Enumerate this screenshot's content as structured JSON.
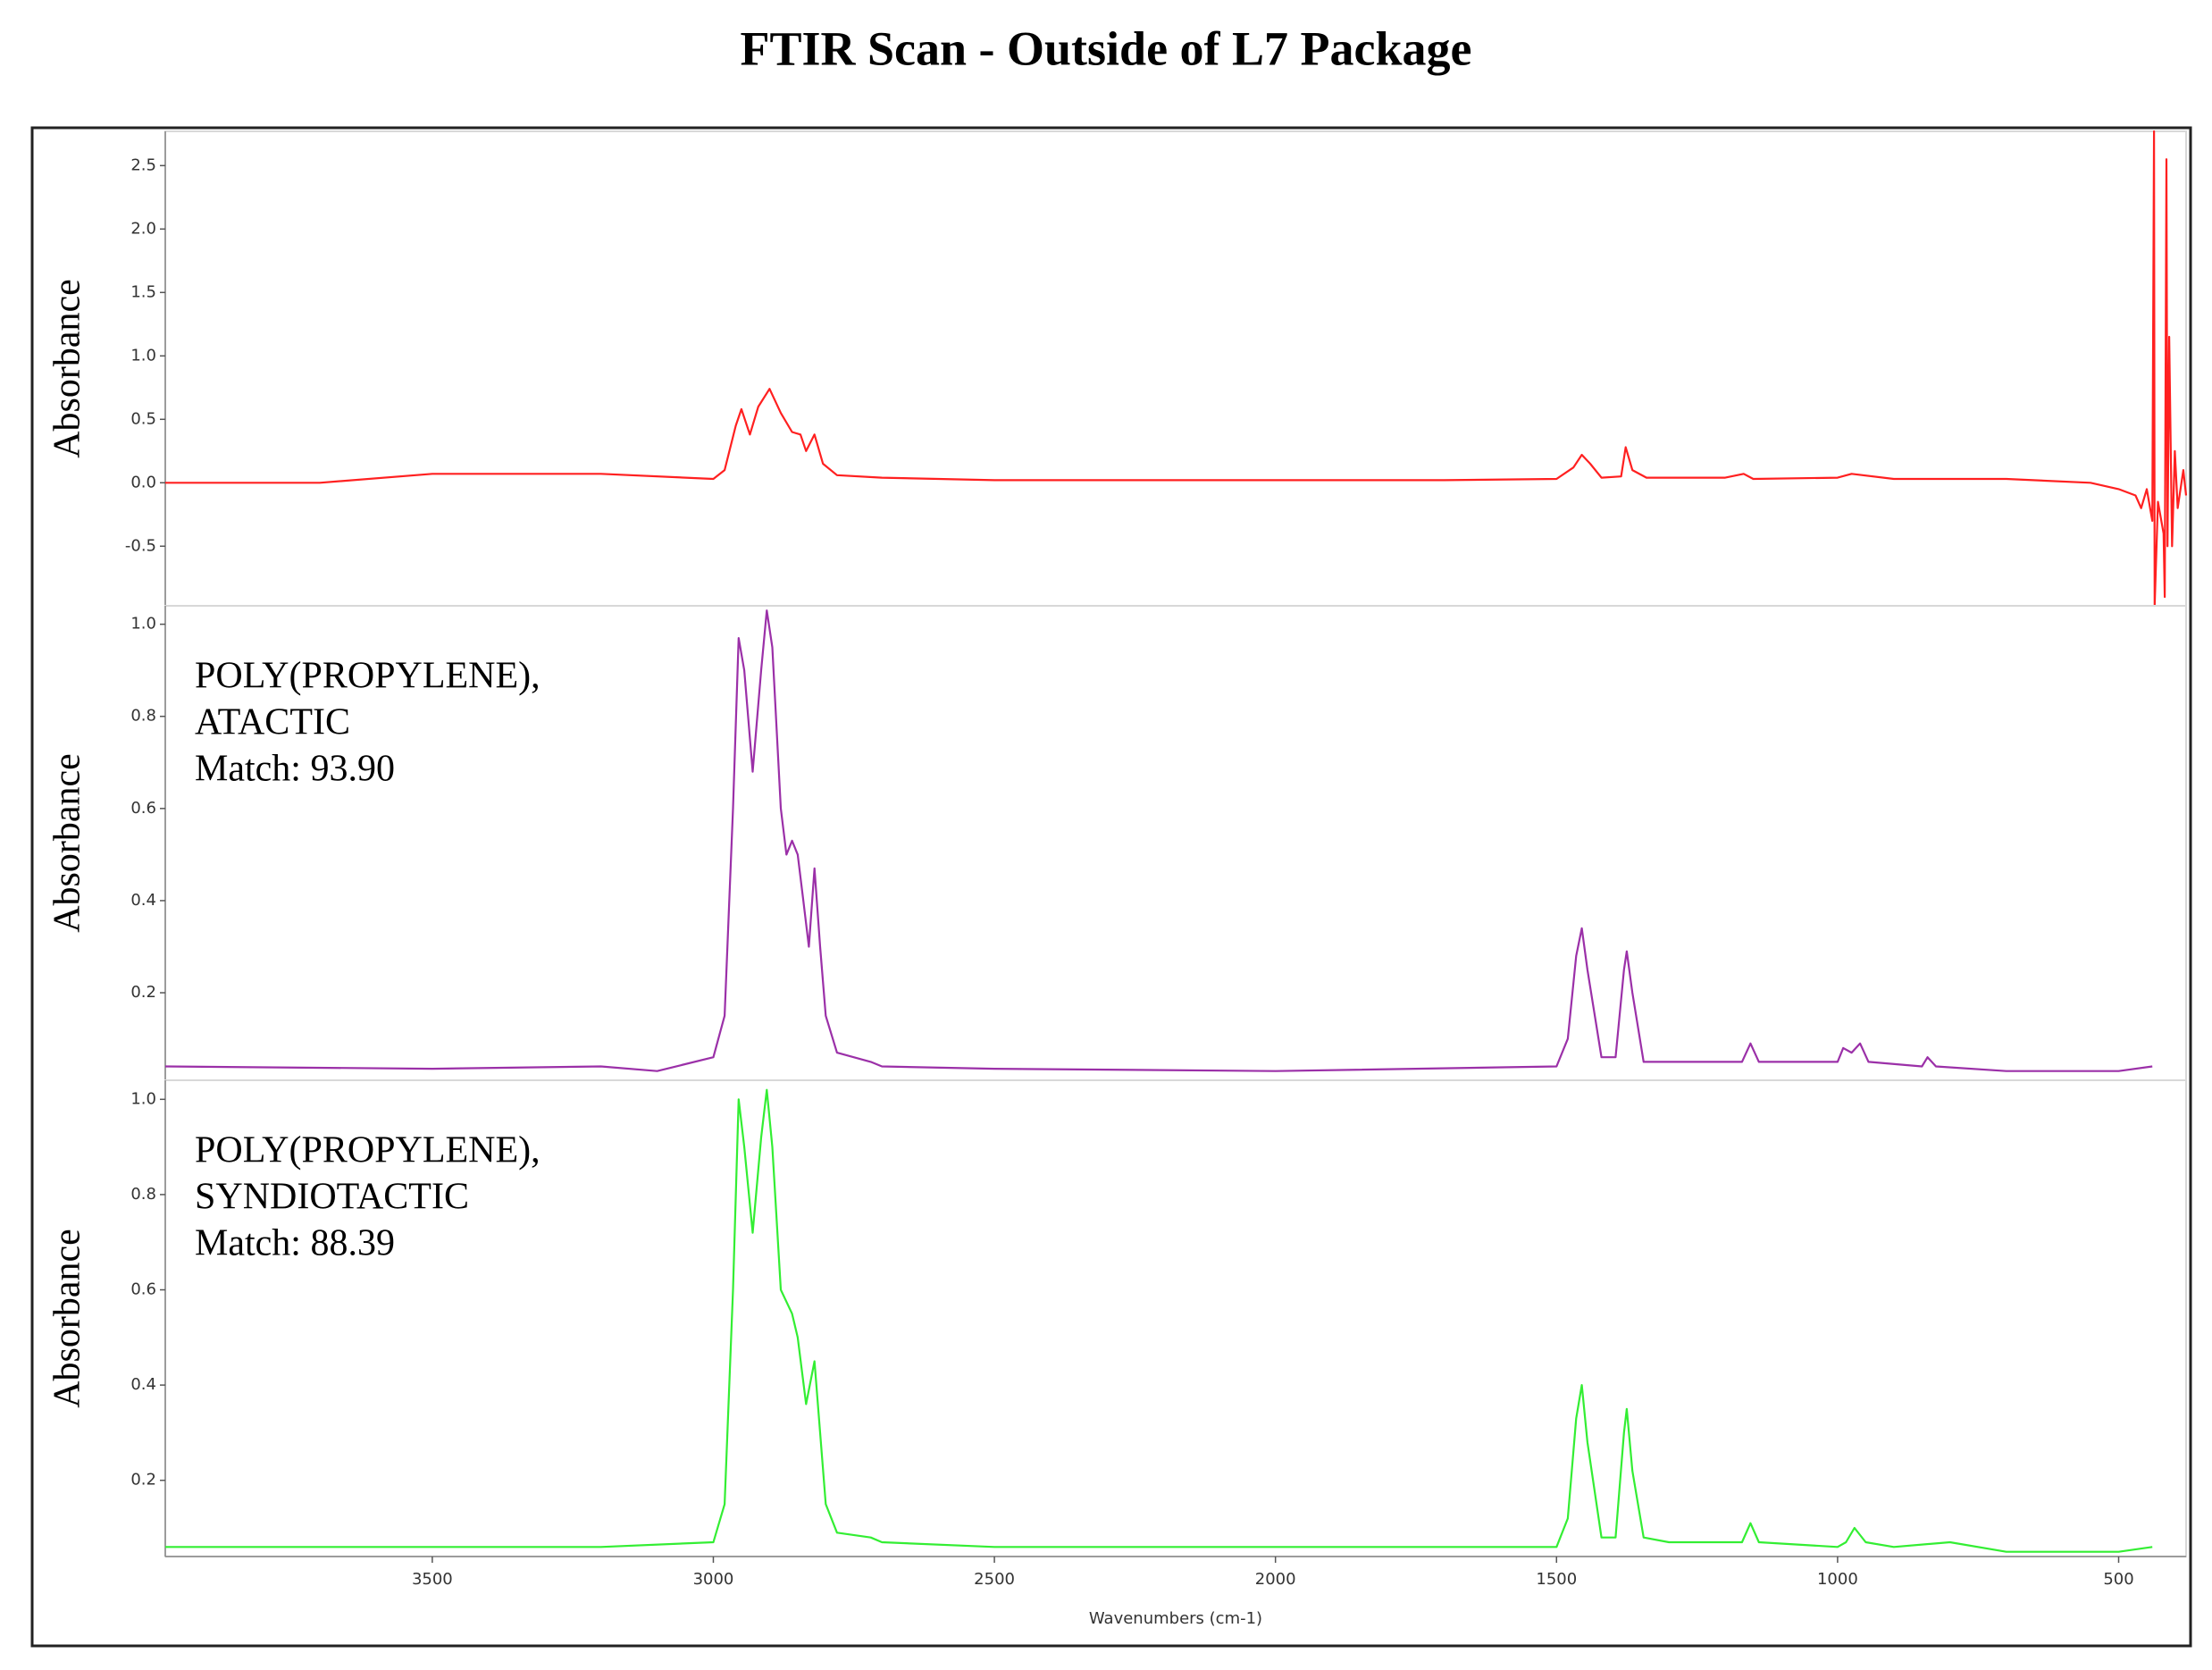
{
  "title": "FTIR Scan - Outside of L7 Package",
  "chart_data": [
    {
      "type": "line",
      "ylabel": "Absorbance",
      "color": "#ff2020",
      "xlim": [
        3975,
        380
      ],
      "ylim": [
        -0.97,
        2.77
      ],
      "yticks": [
        2.5,
        {
          "value": 2,
          "label": "2.0"
        },
        1.5,
        {
          "value": 1,
          "label": "1.0"
        },
        0.5,
        {
          "value": 0,
          "label": "0.0"
        },
        -0.5
      ],
      "x": [
        3975,
        3700,
        3500,
        3200,
        3000,
        2980,
        2960,
        2950,
        2935,
        2920,
        2900,
        2880,
        2860,
        2845,
        2835,
        2820,
        2805,
        2780,
        2700,
        2500,
        2000,
        1700,
        1500,
        1470,
        1455,
        1440,
        1420,
        1385,
        1377,
        1365,
        1340,
        1200,
        1167,
        1150,
        1000,
        975,
        900,
        700,
        550,
        500,
        470,
        460,
        450,
        440,
        437,
        436,
        430,
        420,
        418,
        415,
        413,
        410,
        405,
        400,
        395,
        385,
        380
      ],
      "values": [
        0.0,
        0.0,
        0.07,
        0.07,
        0.03,
        0.1,
        0.45,
        0.58,
        0.38,
        0.6,
        0.74,
        0.55,
        0.4,
        0.38,
        0.25,
        0.38,
        0.15,
        0.06,
        0.04,
        0.02,
        0.02,
        0.02,
        0.03,
        0.12,
        0.22,
        0.15,
        0.04,
        0.05,
        0.28,
        0.1,
        0.04,
        0.04,
        0.07,
        0.03,
        0.04,
        0.07,
        0.03,
        0.03,
        0.0,
        -0.05,
        -0.1,
        -0.2,
        -0.05,
        -0.3,
        2.77,
        -0.97,
        -0.15,
        -0.4,
        -0.9,
        2.55,
        -0.5,
        1.15,
        -0.5,
        0.25,
        -0.2,
        0.1,
        -0.1
      ]
    },
    {
      "type": "line",
      "ylabel": "Absorbance",
      "color": "#9b30a8",
      "annotation": [
        "POLY(PROPYLENE),",
        "ATACTIC",
        "Match: 93.90"
      ],
      "xlim": [
        3975,
        380
      ],
      "ylim": [
        0.01,
        1.04
      ],
      "yticks": [
        {
          "value": 1,
          "label": "1.0"
        },
        0.8,
        0.6,
        0.4,
        0.2
      ],
      "x": [
        3975,
        3500,
        3200,
        3100,
        3000,
        2980,
        2965,
        2955,
        2945,
        2930,
        2915,
        2905,
        2895,
        2880,
        2870,
        2860,
        2850,
        2840,
        2830,
        2820,
        2810,
        2800,
        2780,
        2720,
        2700,
        2500,
        2000,
        1500,
        1480,
        1465,
        1455,
        1445,
        1420,
        1395,
        1380,
        1375,
        1365,
        1345,
        1300,
        1170,
        1155,
        1140,
        1000,
        990,
        975,
        960,
        945,
        850,
        840,
        825,
        700,
        500,
        440
      ],
      "values": [
        0.04,
        0.035,
        0.04,
        0.03,
        0.06,
        0.15,
        0.6,
        0.97,
        0.9,
        0.68,
        0.9,
        1.03,
        0.95,
        0.6,
        0.5,
        0.53,
        0.5,
        0.4,
        0.3,
        0.47,
        0.3,
        0.15,
        0.07,
        0.05,
        0.04,
        0.035,
        0.03,
        0.04,
        0.1,
        0.28,
        0.34,
        0.25,
        0.06,
        0.06,
        0.25,
        0.29,
        0.2,
        0.05,
        0.05,
        0.05,
        0.09,
        0.05,
        0.05,
        0.08,
        0.07,
        0.09,
        0.05,
        0.04,
        0.06,
        0.04,
        0.03,
        0.03,
        0.04
      ]
    },
    {
      "type": "line",
      "ylabel": "Absorbance",
      "color": "#33ee33",
      "annotation": [
        "POLY(PROPYLENE),",
        "SYNDIOTACTIC",
        "Match: 88.39"
      ],
      "xlim": [
        3975,
        380
      ],
      "ylim": [
        0.04,
        1.04
      ],
      "yticks": [
        {
          "value": 1,
          "label": "1.0"
        },
        0.8,
        0.6,
        0.4,
        0.2
      ],
      "xticks": [
        3500,
        3000,
        2500,
        2000,
        1500,
        1000,
        500
      ],
      "xlabel": "Wavenumbers (cm-1)",
      "x": [
        3975,
        3500,
        3200,
        3000,
        2980,
        2965,
        2955,
        2945,
        2930,
        2915,
        2905,
        2895,
        2880,
        2860,
        2850,
        2835,
        2820,
        2810,
        2800,
        2780,
        2720,
        2700,
        2500,
        2000,
        1500,
        1480,
        1465,
        1455,
        1445,
        1420,
        1395,
        1380,
        1375,
        1365,
        1345,
        1300,
        1170,
        1155,
        1140,
        1000,
        985,
        970,
        950,
        900,
        800,
        700,
        500,
        440
      ],
      "values": [
        0.06,
        0.06,
        0.06,
        0.07,
        0.15,
        0.6,
        1.0,
        0.9,
        0.72,
        0.92,
        1.02,
        0.9,
        0.6,
        0.55,
        0.5,
        0.36,
        0.45,
        0.3,
        0.15,
        0.09,
        0.08,
        0.07,
        0.06,
        0.06,
        0.06,
        0.12,
        0.33,
        0.4,
        0.28,
        0.08,
        0.08,
        0.3,
        0.35,
        0.22,
        0.08,
        0.07,
        0.07,
        0.11,
        0.07,
        0.06,
        0.07,
        0.1,
        0.07,
        0.06,
        0.07,
        0.05,
        0.05,
        0.06
      ]
    }
  ]
}
